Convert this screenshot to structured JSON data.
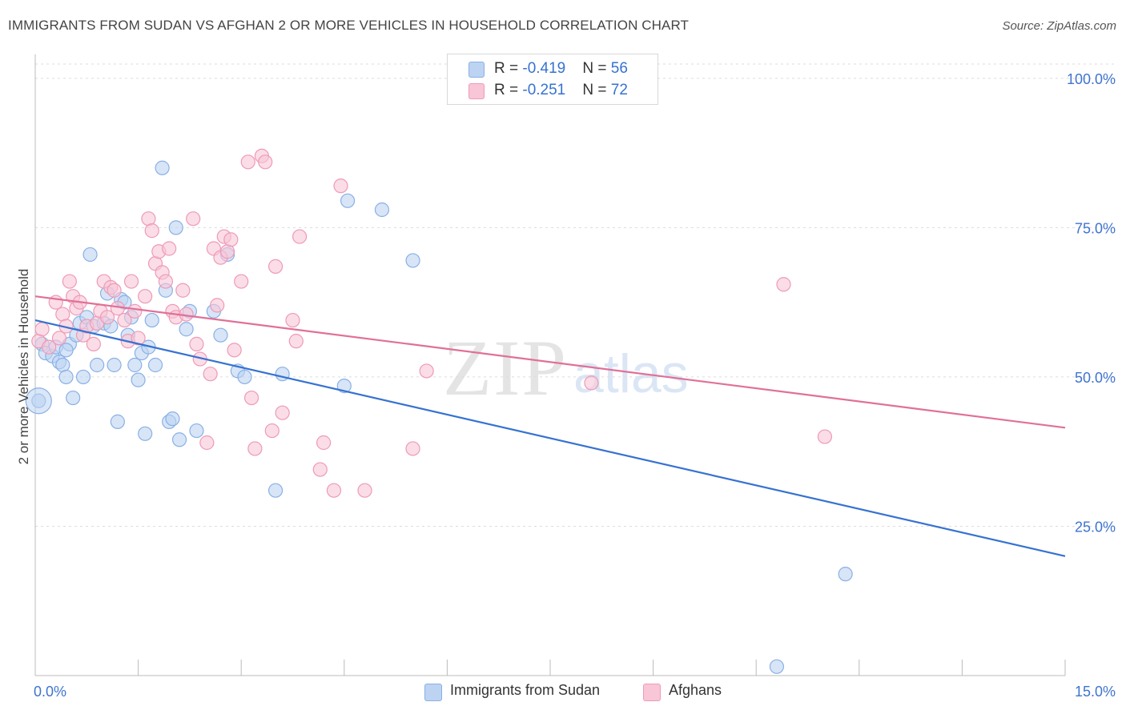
{
  "title": "IMMIGRANTS FROM SUDAN VS AFGHAN 2 OR MORE VEHICLES IN HOUSEHOLD CORRELATION CHART",
  "source": "Source: ZipAtlas.com",
  "watermark": {
    "zip": "ZIP",
    "atlas": "atlas"
  },
  "legend_top": [
    {
      "r_label": "R = ",
      "r_value": "-0.419",
      "n_label": "N = ",
      "n_value": "56",
      "color": "#adc8ef"
    },
    {
      "r_label": "R = ",
      "r_value": "-0.251",
      "n_label": "N = ",
      "n_value": "72",
      "color": "#f5b6cb"
    }
  ],
  "chart_data": {
    "type": "scatter",
    "ylabel": "2 or more Vehicles in Household",
    "xlim": [
      0,
      15
    ],
    "ylim": [
      0,
      104
    ],
    "x_tick_labels": [
      "0.0%",
      "15.0%"
    ],
    "y_ticks": [
      25,
      50,
      75,
      100
    ],
    "y_tick_labels": [
      "25.0%",
      "50.0%",
      "75.0%",
      "100.0%"
    ],
    "grid": true,
    "series": [
      {
        "name": "Immigrants from Sudan",
        "color": "#8ab0e6",
        "fill": "#bcd3f2",
        "line_color": "#3672d1",
        "trend": {
          "x": [
            0,
            15
          ],
          "y": [
            59.5,
            20.0
          ]
        },
        "points": [
          [
            0.05,
            46.0
          ],
          [
            0.1,
            55.5
          ],
          [
            0.15,
            54.0
          ],
          [
            0.25,
            53.5
          ],
          [
            0.3,
            55.0
          ],
          [
            0.35,
            52.5
          ],
          [
            0.4,
            52.0
          ],
          [
            0.45,
            50.0
          ],
          [
            0.5,
            55.5
          ],
          [
            0.55,
            46.5
          ],
          [
            0.6,
            57.0
          ],
          [
            0.65,
            59.0
          ],
          [
            0.7,
            50.0
          ],
          [
            0.75,
            60.0
          ],
          [
            0.8,
            70.5
          ],
          [
            0.85,
            58.5
          ],
          [
            0.9,
            52.0
          ],
          [
            1.0,
            59.0
          ],
          [
            1.05,
            64.0
          ],
          [
            1.1,
            58.5
          ],
          [
            1.15,
            52.0
          ],
          [
            1.2,
            42.5
          ],
          [
            1.25,
            63.0
          ],
          [
            1.3,
            62.5
          ],
          [
            1.35,
            57.0
          ],
          [
            1.4,
            60.0
          ],
          [
            1.45,
            52.0
          ],
          [
            1.5,
            49.5
          ],
          [
            1.55,
            54.0
          ],
          [
            1.6,
            40.5
          ],
          [
            1.65,
            55.0
          ],
          [
            1.7,
            59.5
          ],
          [
            1.75,
            52.0
          ],
          [
            1.85,
            85.0
          ],
          [
            1.9,
            64.5
          ],
          [
            1.95,
            42.5
          ],
          [
            2.0,
            43.0
          ],
          [
            2.05,
            75.0
          ],
          [
            2.1,
            39.5
          ],
          [
            2.2,
            58.0
          ],
          [
            2.25,
            61.0
          ],
          [
            2.35,
            41.0
          ],
          [
            2.6,
            61.0
          ],
          [
            2.7,
            57.0
          ],
          [
            2.8,
            70.5
          ],
          [
            2.95,
            51.0
          ],
          [
            3.05,
            50.0
          ],
          [
            3.5,
            31.0
          ],
          [
            3.6,
            50.5
          ],
          [
            4.5,
            48.5
          ],
          [
            4.55,
            79.5
          ],
          [
            5.05,
            78.0
          ],
          [
            5.5,
            69.5
          ],
          [
            11.8,
            17.0
          ],
          [
            10.8,
            1.5
          ],
          [
            0.45,
            54.5
          ]
        ],
        "large_point": [
          0.05,
          46.0
        ]
      },
      {
        "name": "Afghans",
        "color": "#ee9ab6",
        "fill": "#f8c6d7",
        "line_color": "#e07098",
        "trend": {
          "x": [
            0,
            15
          ],
          "y": [
            63.5,
            41.5
          ]
        },
        "points": [
          [
            0.05,
            56.0
          ],
          [
            0.1,
            58.0
          ],
          [
            0.2,
            55.0
          ],
          [
            0.3,
            62.5
          ],
          [
            0.35,
            56.5
          ],
          [
            0.4,
            60.5
          ],
          [
            0.45,
            58.5
          ],
          [
            0.5,
            66.0
          ],
          [
            0.55,
            63.5
          ],
          [
            0.6,
            61.5
          ],
          [
            0.65,
            62.5
          ],
          [
            0.7,
            57.0
          ],
          [
            0.75,
            58.5
          ],
          [
            0.85,
            55.5
          ],
          [
            0.9,
            59.0
          ],
          [
            0.95,
            61.0
          ],
          [
            1.0,
            66.0
          ],
          [
            1.05,
            60.0
          ],
          [
            1.1,
            65.0
          ],
          [
            1.15,
            64.5
          ],
          [
            1.2,
            61.5
          ],
          [
            1.3,
            59.5
          ],
          [
            1.35,
            56.0
          ],
          [
            1.4,
            66.0
          ],
          [
            1.45,
            61.0
          ],
          [
            1.5,
            56.5
          ],
          [
            1.6,
            63.5
          ],
          [
            1.65,
            76.5
          ],
          [
            1.7,
            74.5
          ],
          [
            1.75,
            69.0
          ],
          [
            1.8,
            71.0
          ],
          [
            1.85,
            67.5
          ],
          [
            1.9,
            66.0
          ],
          [
            1.95,
            71.5
          ],
          [
            2.0,
            61.0
          ],
          [
            2.05,
            60.0
          ],
          [
            2.15,
            64.5
          ],
          [
            2.2,
            60.5
          ],
          [
            2.3,
            76.5
          ],
          [
            2.35,
            55.5
          ],
          [
            2.4,
            53.0
          ],
          [
            2.5,
            39.0
          ],
          [
            2.55,
            50.5
          ],
          [
            2.6,
            71.5
          ],
          [
            2.65,
            62.0
          ],
          [
            2.7,
            70.0
          ],
          [
            2.75,
            73.5
          ],
          [
            2.8,
            71.0
          ],
          [
            2.85,
            73.0
          ],
          [
            2.9,
            54.5
          ],
          [
            3.0,
            66.0
          ],
          [
            3.1,
            86.0
          ],
          [
            3.15,
            46.5
          ],
          [
            3.2,
            38.0
          ],
          [
            3.3,
            87.0
          ],
          [
            3.35,
            86.0
          ],
          [
            3.45,
            41.0
          ],
          [
            3.5,
            68.5
          ],
          [
            3.6,
            44.0
          ],
          [
            3.75,
            59.5
          ],
          [
            3.8,
            56.0
          ],
          [
            3.85,
            73.5
          ],
          [
            4.15,
            34.5
          ],
          [
            4.2,
            39.0
          ],
          [
            4.35,
            31.0
          ],
          [
            4.45,
            82.0
          ],
          [
            4.8,
            31.0
          ],
          [
            5.5,
            38.0
          ],
          [
            5.7,
            51.0
          ],
          [
            8.1,
            49.0
          ],
          [
            10.9,
            65.5
          ],
          [
            11.5,
            40.0
          ]
        ]
      }
    ]
  },
  "legend_bottom": [
    {
      "label": "Immigrants from Sudan",
      "color": "#bcd3f2",
      "border": "#8ab0e6"
    },
    {
      "label": "Afghans",
      "color": "#f8c6d7",
      "border": "#ee9ab6"
    }
  ]
}
